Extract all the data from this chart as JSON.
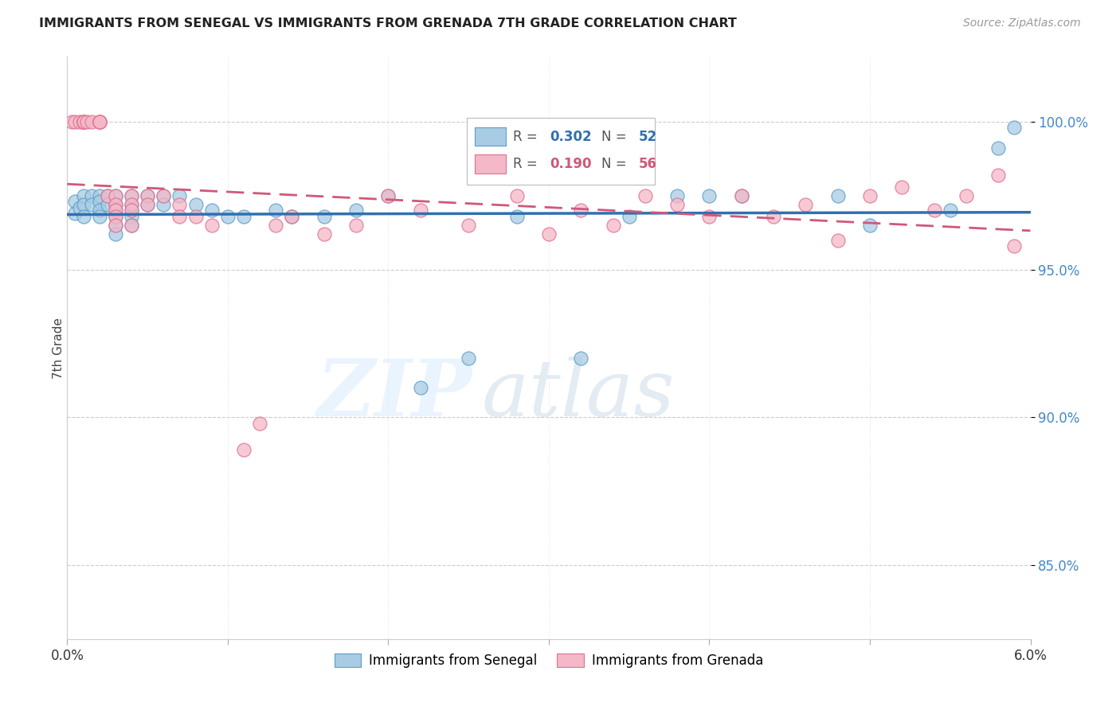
{
  "title": "IMMIGRANTS FROM SENEGAL VS IMMIGRANTS FROM GRENADA 7TH GRADE CORRELATION CHART",
  "source": "Source: ZipAtlas.com",
  "ylabel": "7th Grade",
  "ylabel_tick_vals": [
    0.85,
    0.9,
    0.95,
    1.0
  ],
  "xmin": 0.0,
  "xmax": 0.06,
  "ymin": 0.825,
  "ymax": 1.022,
  "blue_color": "#a8cce4",
  "pink_color": "#f4b8c8",
  "blue_edge_color": "#5b9ec9",
  "pink_edge_color": "#e07090",
  "blue_line_color": "#3070b0",
  "pink_line_color": "#d05878",
  "watermark_zip": "ZIP",
  "watermark_atlas": "atlas",
  "legend_blue_r": "0.302",
  "legend_blue_n": "52",
  "legend_pink_r": "0.190",
  "legend_pink_n": "56",
  "blue_scatter_x": [
    0.0005,
    0.0005,
    0.0008,
    0.001,
    0.001,
    0.001,
    0.0015,
    0.0015,
    0.002,
    0.002,
    0.002,
    0.002,
    0.0025,
    0.0025,
    0.003,
    0.003,
    0.003,
    0.003,
    0.003,
    0.003,
    0.004,
    0.004,
    0.004,
    0.004,
    0.004,
    0.005,
    0.005,
    0.006,
    0.006,
    0.007,
    0.008,
    0.009,
    0.01,
    0.011,
    0.013,
    0.014,
    0.016,
    0.018,
    0.02,
    0.022,
    0.025,
    0.028,
    0.032,
    0.035,
    0.038,
    0.04,
    0.042,
    0.048,
    0.05,
    0.055,
    0.058,
    0.059
  ],
  "blue_scatter_y": [
    0.973,
    0.969,
    0.971,
    0.975,
    0.972,
    0.968,
    0.975,
    0.972,
    0.975,
    0.973,
    0.97,
    0.968,
    0.975,
    0.972,
    0.975,
    0.972,
    0.97,
    0.968,
    0.965,
    0.962,
    0.975,
    0.972,
    0.97,
    0.968,
    0.965,
    0.975,
    0.972,
    0.975,
    0.972,
    0.975,
    0.972,
    0.97,
    0.968,
    0.968,
    0.97,
    0.968,
    0.968,
    0.97,
    0.975,
    0.91,
    0.92,
    0.968,
    0.92,
    0.968,
    0.975,
    0.975,
    0.975,
    0.975,
    0.965,
    0.97,
    0.991,
    0.998
  ],
  "pink_scatter_x": [
    0.0003,
    0.0005,
    0.0008,
    0.001,
    0.001,
    0.001,
    0.001,
    0.0012,
    0.0015,
    0.002,
    0.002,
    0.002,
    0.002,
    0.0025,
    0.003,
    0.003,
    0.003,
    0.003,
    0.003,
    0.004,
    0.004,
    0.004,
    0.004,
    0.005,
    0.005,
    0.006,
    0.007,
    0.007,
    0.008,
    0.009,
    0.011,
    0.012,
    0.013,
    0.014,
    0.016,
    0.018,
    0.02,
    0.022,
    0.025,
    0.028,
    0.03,
    0.032,
    0.034,
    0.036,
    0.038,
    0.04,
    0.042,
    0.044,
    0.046,
    0.048,
    0.05,
    0.052,
    0.054,
    0.056,
    0.058,
    0.059
  ],
  "pink_scatter_y": [
    1.0,
    1.0,
    1.0,
    1.0,
    1.0,
    1.0,
    1.0,
    1.0,
    1.0,
    1.0,
    1.0,
    1.0,
    1.0,
    0.975,
    0.975,
    0.972,
    0.97,
    0.968,
    0.965,
    0.975,
    0.972,
    0.97,
    0.965,
    0.975,
    0.972,
    0.975,
    0.972,
    0.968,
    0.968,
    0.965,
    0.889,
    0.898,
    0.965,
    0.968,
    0.962,
    0.965,
    0.975,
    0.97,
    0.965,
    0.975,
    0.962,
    0.97,
    0.965,
    0.975,
    0.972,
    0.968,
    0.975,
    0.968,
    0.972,
    0.96,
    0.975,
    0.978,
    0.97,
    0.975,
    0.982,
    0.958
  ]
}
